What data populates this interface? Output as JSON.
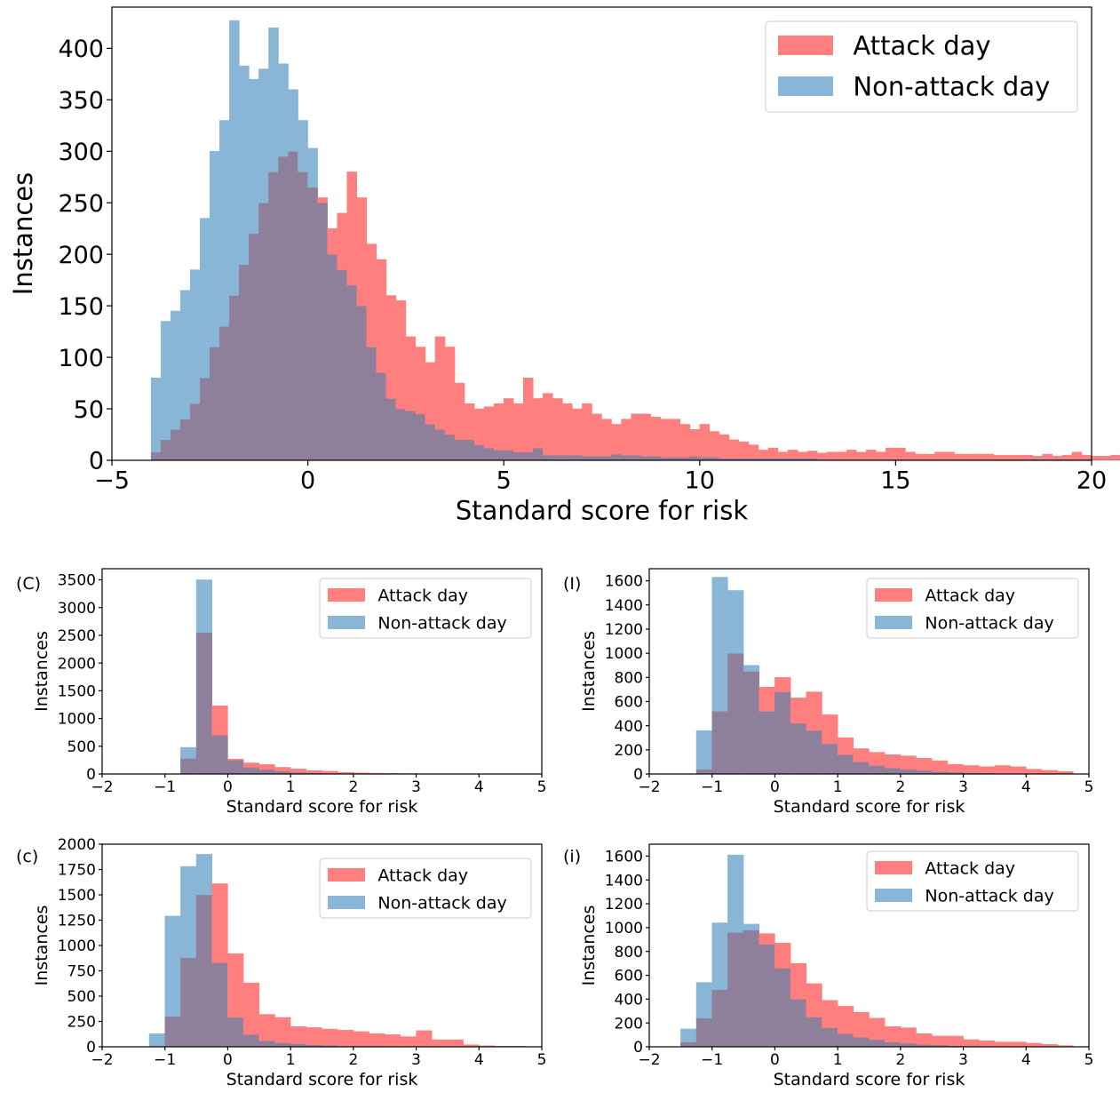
{
  "colors": {
    "attack": "#ff7f7f",
    "non_attack": "#89b6d7",
    "overlap": "#8e7f9a"
  },
  "chart_data": [
    {
      "type": "histogram",
      "panel_label": "",
      "xlabel": "Standard score for risk",
      "ylabel": "Instances",
      "xlim": [
        -5,
        20
      ],
      "ylim": [
        0,
        440
      ],
      "xticks": [
        -5,
        0,
        5,
        10,
        15,
        20
      ],
      "xtick_labels": [
        "−5",
        "0",
        "5",
        "10",
        "15",
        "20"
      ],
      "yticks": [
        0,
        50,
        100,
        150,
        200,
        250,
        300,
        350,
        400
      ],
      "bin_start": -4.0,
      "bin_width": 0.25,
      "legend_position": "upper right",
      "series": [
        {
          "name": "Attack day",
          "color_key": "attack",
          "values": [
            8,
            20,
            30,
            40,
            55,
            80,
            110,
            130,
            160,
            190,
            220,
            250,
            280,
            295,
            300,
            280,
            265,
            255,
            225,
            240,
            280,
            255,
            210,
            195,
            160,
            155,
            120,
            110,
            95,
            120,
            110,
            75,
            55,
            50,
            52,
            55,
            60,
            55,
            80,
            60,
            65,
            60,
            55,
            50,
            55,
            45,
            40,
            35,
            40,
            45,
            45,
            42,
            40,
            40,
            35,
            30,
            35,
            28,
            25,
            20,
            18,
            15,
            10,
            12,
            8,
            10,
            8,
            9,
            7,
            8,
            8,
            10,
            8,
            10,
            8,
            12,
            12,
            8,
            6,
            6,
            8,
            8,
            6,
            6,
            6,
            6,
            5,
            5,
            5,
            5,
            4,
            6,
            4,
            5,
            8,
            5,
            4,
            4,
            5,
            4,
            5,
            5,
            6,
            5,
            8,
            5,
            4,
            4,
            4,
            4
          ]
        },
        {
          "name": "Non-attack day",
          "color_key": "non_attack",
          "values": [
            80,
            135,
            145,
            165,
            185,
            235,
            300,
            330,
            427,
            383,
            370,
            380,
            420,
            385,
            360,
            330,
            303,
            250,
            200,
            185,
            170,
            150,
            110,
            85,
            60,
            50,
            48,
            45,
            35,
            30,
            25,
            20,
            20,
            15,
            12,
            10,
            10,
            8,
            8,
            12,
            5,
            5,
            5,
            5,
            4,
            4,
            4,
            6,
            5,
            5,
            4,
            4,
            3,
            3,
            3,
            4,
            3,
            3,
            2,
            2,
            2,
            2,
            2,
            2,
            2,
            2,
            2,
            2,
            1,
            1,
            1,
            1,
            1,
            1,
            1,
            1,
            1,
            1,
            1,
            1,
            1,
            1,
            1,
            1,
            1,
            1,
            1,
            1,
            1,
            1,
            1,
            1,
            1,
            1,
            1,
            1,
            1,
            1,
            1,
            1,
            1,
            1,
            1,
            1,
            1,
            1,
            1,
            1,
            1,
            1
          ]
        }
      ]
    },
    {
      "type": "histogram",
      "panel_label": "(C)",
      "xlabel": "Standard score for risk",
      "ylabel": "Instances",
      "xlim": [
        -2,
        5
      ],
      "ylim": [
        0,
        3700
      ],
      "xticks": [
        -2,
        -1,
        0,
        1,
        2,
        3,
        4,
        5
      ],
      "xtick_labels": [
        "−2",
        "−1",
        "0",
        "1",
        "2",
        "3",
        "4",
        "5"
      ],
      "yticks": [
        0,
        500,
        1000,
        1500,
        2000,
        2500,
        3000,
        3500
      ],
      "bin_start": -0.75,
      "bin_width": 0.25,
      "legend_position": "upper right",
      "series": [
        {
          "name": "Attack day",
          "color_key": "attack",
          "values": [
            280,
            2550,
            1230,
            270,
            200,
            170,
            120,
            90,
            60,
            50,
            30,
            20,
            15,
            10,
            8,
            5,
            5,
            4,
            3,
            3,
            2,
            2
          ]
        },
        {
          "name": "Non-attack day",
          "color_key": "non_attack",
          "values": [
            480,
            3500,
            700,
            250,
            120,
            80,
            50,
            30,
            20,
            10,
            8,
            5,
            4,
            3,
            2,
            2,
            1,
            1,
            1,
            1,
            1,
            1
          ]
        }
      ]
    },
    {
      "type": "histogram",
      "panel_label": "(I)",
      "xlabel": "Standard score for risk",
      "ylabel": "Instances",
      "xlim": [
        -2,
        5
      ],
      "ylim": [
        0,
        1700
      ],
      "xticks": [
        -2,
        -1,
        0,
        1,
        2,
        3,
        4,
        5
      ],
      "xtick_labels": [
        "−2",
        "−1",
        "0",
        "1",
        "2",
        "3",
        "4",
        "5"
      ],
      "yticks": [
        0,
        200,
        400,
        600,
        800,
        1000,
        1200,
        1400,
        1600
      ],
      "bin_start": -1.25,
      "bin_width": 0.25,
      "legend_position": "upper right",
      "series": [
        {
          "name": "Attack day",
          "color_key": "attack",
          "values": [
            40,
            520,
            1000,
            850,
            720,
            800,
            630,
            680,
            490,
            300,
            210,
            180,
            160,
            150,
            130,
            110,
            80,
            70,
            60,
            70,
            60,
            40,
            30,
            20
          ]
        },
        {
          "name": "Non-attack day",
          "color_key": "non_attack",
          "values": [
            360,
            1630,
            1520,
            900,
            520,
            680,
            420,
            360,
            250,
            160,
            100,
            70,
            50,
            40,
            30,
            20,
            15,
            10,
            8,
            5,
            4,
            3,
            2,
            1
          ]
        }
      ]
    },
    {
      "type": "histogram",
      "panel_label": "(c)",
      "xlabel": "Standard score for risk",
      "ylabel": "Instances",
      "xlim": [
        -2,
        5
      ],
      "ylim": [
        0,
        2000
      ],
      "xticks": [
        -2,
        -1,
        0,
        1,
        2,
        3,
        4,
        5
      ],
      "xtick_labels": [
        "−2",
        "−1",
        "0",
        "1",
        "2",
        "3",
        "4",
        "5"
      ],
      "yticks": [
        0,
        250,
        500,
        750,
        1000,
        1250,
        1500,
        1750,
        2000
      ],
      "bin_start": -1.25,
      "bin_width": 0.25,
      "legend_position": "upper right",
      "series": [
        {
          "name": "Attack day",
          "color_key": "attack",
          "values": [
            0,
            300,
            880,
            1500,
            1610,
            920,
            630,
            320,
            290,
            200,
            190,
            175,
            165,
            150,
            130,
            120,
            100,
            160,
            70,
            70,
            20,
            10,
            5,
            5
          ]
        },
        {
          "name": "Non-attack day",
          "color_key": "non_attack",
          "values": [
            130,
            1290,
            1780,
            1900,
            830,
            290,
            120,
            60,
            40,
            30,
            20,
            15,
            10,
            10,
            10,
            8,
            5,
            3,
            2,
            2,
            1,
            1,
            1,
            1
          ]
        }
      ]
    },
    {
      "type": "histogram",
      "panel_label": "(i)",
      "xlabel": "Standard score for risk",
      "ylabel": "Instances",
      "xlim": [
        -2,
        5
      ],
      "ylim": [
        0,
        1700
      ],
      "xticks": [
        -2,
        -1,
        0,
        1,
        2,
        3,
        4,
        5
      ],
      "xtick_labels": [
        "−2",
        "−1",
        "0",
        "1",
        "2",
        "3",
        "4",
        "5"
      ],
      "yticks": [
        0,
        200,
        400,
        600,
        800,
        1000,
        1200,
        1400,
        1600
      ],
      "bin_start": -1.5,
      "bin_width": 0.25,
      "legend_position": "upper right",
      "series": [
        {
          "name": "Attack day",
          "color_key": "attack",
          "values": [
            40,
            240,
            480,
            960,
            980,
            950,
            870,
            700,
            530,
            390,
            340,
            290,
            240,
            170,
            160,
            110,
            90,
            90,
            60,
            50,
            40,
            40,
            30,
            20,
            10
          ]
        },
        {
          "name": "Non-attack day",
          "color_key": "non_attack",
          "values": [
            150,
            540,
            1040,
            1610,
            1030,
            860,
            660,
            400,
            250,
            160,
            110,
            80,
            60,
            40,
            30,
            20,
            15,
            10,
            8,
            5,
            4,
            3,
            2,
            1,
            1
          ]
        }
      ]
    }
  ]
}
